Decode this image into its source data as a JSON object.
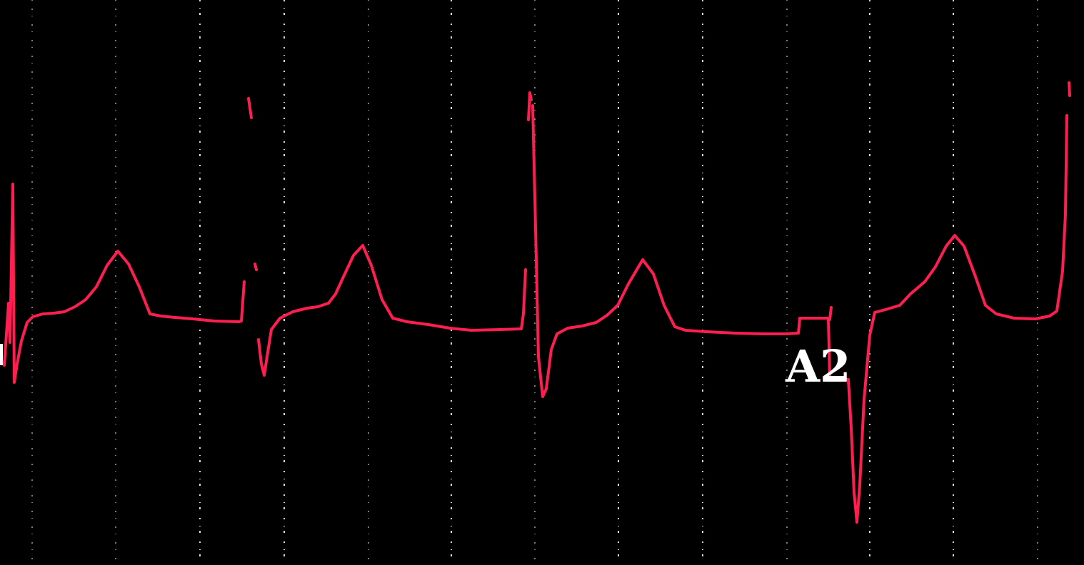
{
  "image": {
    "background_color": "#000000",
    "grid_color": "#ffffff",
    "trace_color": "#ff1e50"
  },
  "annotations": {
    "lead_label": "A2"
  }
}
